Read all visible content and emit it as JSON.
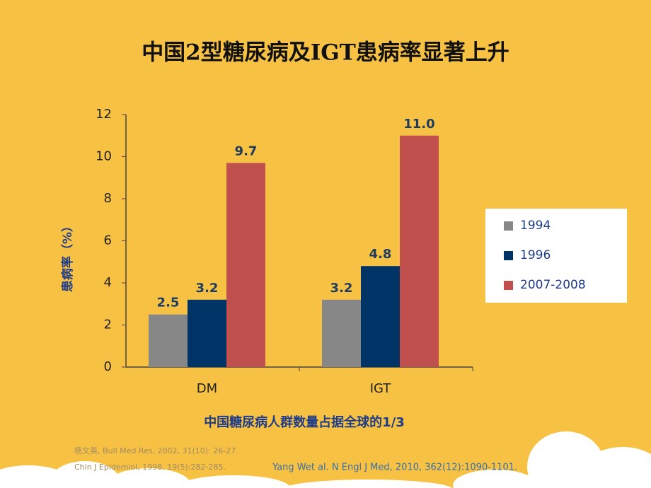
{
  "chart_data": {
    "type": "bar",
    "title": "中国2型糖尿病及IGT患病率显著上升",
    "y_label": "患病率（%）",
    "subtitle": "中国糖尿病人群数量占据全球的1/3",
    "categories": [
      "DM",
      "IGT"
    ],
    "series": [
      {
        "name": "1994",
        "color": "#878787",
        "values": [
          2.5,
          3.2
        ],
        "value_labels": [
          "2.5",
          "3.2"
        ]
      },
      {
        "name": "1996",
        "color": "#003366",
        "values": [
          3.2,
          4.8
        ],
        "value_labels": [
          "3.2",
          "4.8"
        ]
      },
      {
        "name": "2007-2008",
        "color": "#C0504D",
        "values": [
          9.7,
          11.0
        ],
        "value_labels": [
          "9.7",
          "11.0"
        ]
      }
    ],
    "ylim": [
      0,
      12
    ],
    "yticks": [
      0,
      2,
      4,
      6,
      8,
      10,
      12
    ],
    "legend": "right",
    "footnotes": [
      "杨文英, Bull Med Res, 2002, 31(10): 26-27.",
      "Chin J Epidemiol, 1998, 19(5):282-285.",
      "Yang Wet al. N Engl J Med, 2010, 362(12):1090-1101."
    ]
  }
}
